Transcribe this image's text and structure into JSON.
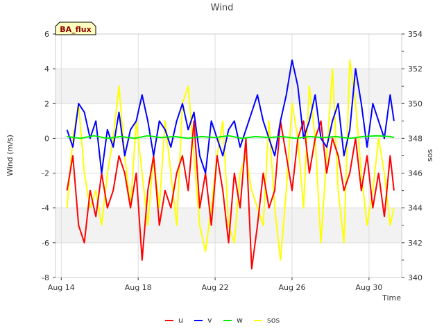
{
  "chart_data": {
    "type": "line",
    "title": "Wind",
    "badge": "BA_flux",
    "xlabel": "Time",
    "ylabel": "Wind (m/s)",
    "y2label": "sos",
    "xlim": [
      13.7,
      31.7
    ],
    "ylim": [
      -8,
      6
    ],
    "y2lim": [
      340,
      354
    ],
    "x_ticks": [
      {
        "value": 14,
        "label": "Aug 14"
      },
      {
        "value": 18,
        "label": "Aug 18"
      },
      {
        "value": 22,
        "label": "Aug 22"
      },
      {
        "value": 26,
        "label": "Aug 26"
      },
      {
        "value": 30,
        "label": "Aug 30"
      }
    ],
    "y_ticks": [
      -8,
      -6,
      -4,
      -2,
      0,
      2,
      4,
      6
    ],
    "y2_ticks": [
      340,
      342,
      344,
      346,
      348,
      350,
      352,
      354
    ],
    "bands": [
      [
        -6,
        -4
      ],
      [
        2,
        4
      ]
    ],
    "series": [
      {
        "name": "u",
        "color": "#ff0000",
        "axis": "left",
        "x": [
          14.3,
          14.6,
          14.9,
          15.2,
          15.5,
          15.8,
          16.1,
          16.4,
          16.7,
          17.0,
          17.3,
          17.6,
          17.9,
          18.2,
          18.5,
          18.8,
          19.1,
          19.4,
          19.7,
          20.0,
          20.3,
          20.6,
          20.9,
          21.2,
          21.5,
          21.8,
          22.1,
          22.4,
          22.7,
          23.0,
          23.3,
          23.6,
          23.9,
          24.2,
          24.5,
          24.8,
          25.1,
          25.4,
          25.7,
          26.0,
          26.3,
          26.6,
          26.9,
          27.2,
          27.5,
          27.8,
          28.1,
          28.4,
          28.7,
          29.0,
          29.3,
          29.6,
          29.9,
          30.2,
          30.5,
          30.8,
          31.1,
          31.3
        ],
        "values": [
          -3,
          -1,
          -5,
          -6,
          -3,
          -4.5,
          -2,
          -4,
          -3,
          -1,
          -2,
          -4,
          -2,
          -7,
          -3,
          -1,
          -5,
          -3,
          -4,
          -2,
          -1,
          -3,
          1,
          -4,
          -2,
          -5,
          -1,
          -3,
          -6,
          -2,
          -4,
          0,
          -7.5,
          -5,
          -2,
          -4,
          -3,
          1,
          -1,
          -3,
          0,
          1,
          -2,
          0,
          1,
          -2,
          0,
          -1,
          -3,
          -2,
          0,
          -3,
          -1,
          -4,
          -2,
          -4.5,
          -1,
          -3
        ]
      },
      {
        "name": "v",
        "color": "#0000ff",
        "axis": "left",
        "x": [
          14.3,
          14.6,
          14.9,
          15.2,
          15.5,
          15.8,
          16.1,
          16.4,
          16.7,
          17.0,
          17.3,
          17.6,
          17.9,
          18.2,
          18.5,
          18.8,
          19.1,
          19.4,
          19.7,
          20.0,
          20.3,
          20.6,
          20.9,
          21.2,
          21.5,
          21.8,
          22.1,
          22.4,
          22.7,
          23.0,
          23.3,
          23.6,
          23.9,
          24.2,
          24.5,
          24.8,
          25.1,
          25.4,
          25.7,
          26.0,
          26.3,
          26.6,
          26.9,
          27.2,
          27.5,
          27.8,
          28.1,
          28.4,
          28.7,
          29.0,
          29.3,
          29.6,
          29.9,
          30.2,
          30.5,
          30.8,
          31.1,
          31.3
        ],
        "values": [
          0.5,
          -0.5,
          2,
          1.5,
          0,
          1,
          -2,
          0.5,
          -0.5,
          1.5,
          -1,
          0.5,
          1,
          2.5,
          1,
          -1,
          1,
          0.5,
          -0.5,
          1,
          2,
          0.5,
          1.5,
          -1,
          -2,
          1,
          0,
          -1,
          0.5,
          1,
          -0.5,
          0.5,
          1.5,
          2.5,
          1,
          0,
          -1,
          1,
          2.5,
          4.5,
          3,
          0,
          1,
          2.5,
          0,
          -0.5,
          1,
          2,
          -1,
          0.5,
          4,
          2,
          -0.5,
          2,
          1,
          0,
          2.5,
          1
        ]
      },
      {
        "name": "w",
        "color": "#00ee00",
        "axis": "left",
        "x": [
          14.3,
          15.0,
          15.7,
          16.4,
          17.1,
          17.8,
          18.5,
          19.2,
          19.9,
          20.6,
          21.3,
          22.0,
          22.7,
          23.4,
          24.1,
          24.8,
          25.5,
          26.2,
          26.9,
          27.6,
          28.3,
          29.0,
          29.7,
          30.4,
          31.1,
          31.3
        ],
        "values": [
          0.1,
          0,
          0.15,
          0,
          0.1,
          0,
          0.15,
          0.05,
          0.1,
          0,
          0.1,
          0.05,
          0.15,
          0,
          0.1,
          0.05,
          0.1,
          0,
          0.1,
          0.05,
          0.1,
          0,
          0.1,
          0.15,
          0.1,
          0.05
        ]
      },
      {
        "name": "sos",
        "color": "#ffff00",
        "axis": "right",
        "x": [
          14.3,
          14.6,
          14.9,
          15.2,
          15.5,
          15.8,
          16.1,
          16.4,
          16.7,
          17.0,
          17.3,
          17.6,
          17.9,
          18.2,
          18.5,
          18.8,
          19.1,
          19.4,
          19.7,
          20.0,
          20.3,
          20.6,
          20.9,
          21.2,
          21.5,
          21.8,
          22.1,
          22.4,
          22.7,
          23.0,
          23.3,
          23.6,
          23.9,
          24.2,
          24.5,
          24.8,
          25.1,
          25.4,
          25.7,
          26.0,
          26.3,
          26.6,
          26.9,
          27.2,
          27.5,
          27.8,
          28.1,
          28.4,
          28.7,
          29.0,
          29.3,
          29.6,
          29.9,
          30.2,
          30.5,
          30.8,
          31.1,
          31.3
        ],
        "values": [
          344,
          348,
          350,
          346,
          344,
          345,
          343,
          346,
          348,
          351,
          347,
          344,
          349,
          346,
          343,
          347,
          344,
          349,
          346,
          343,
          350,
          351,
          347,
          343,
          341.5,
          344,
          347,
          349,
          343,
          342,
          346,
          347,
          345,
          344,
          343,
          349,
          344,
          341,
          345,
          350,
          348,
          344,
          351,
          348,
          342,
          347,
          352,
          345,
          342,
          352.5,
          350,
          346,
          343,
          345,
          348,
          346,
          343,
          344
        ]
      }
    ]
  }
}
